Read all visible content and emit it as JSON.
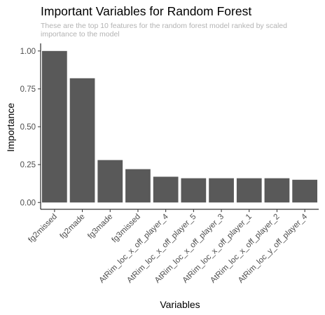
{
  "chart_data": {
    "type": "bar",
    "title": "Important Variables for Random Forest",
    "subtitle": "These are the top 10 features for the random forest model ranked by scaled importance to the model",
    "xlabel": "Variables",
    "ylabel": "Importance",
    "categories": [
      "fg2missed",
      "fg2made",
      "fg3made",
      "fg3missed",
      "AtRim_loc_x_off_player_4",
      "AtRim_loc_x_off_player_5",
      "AtRim_loc_x_off_player_3",
      "AtRim_loc_x_off_player_1",
      "AtRim_loc_x_off_player_2",
      "AtRim_loc_y_off_player_4"
    ],
    "values": [
      1.0,
      0.82,
      0.28,
      0.22,
      0.17,
      0.16,
      0.16,
      0.16,
      0.16,
      0.15
    ],
    "ylim": [
      -0.045,
      1.05
    ],
    "yticks": [
      0.0,
      0.25,
      0.5,
      0.75,
      1.0
    ],
    "ytick_labels": [
      "0.00",
      "0.25",
      "0.50",
      "0.75",
      "1.00"
    ],
    "grid": false,
    "legend": "none",
    "bar_color": "#595959"
  }
}
